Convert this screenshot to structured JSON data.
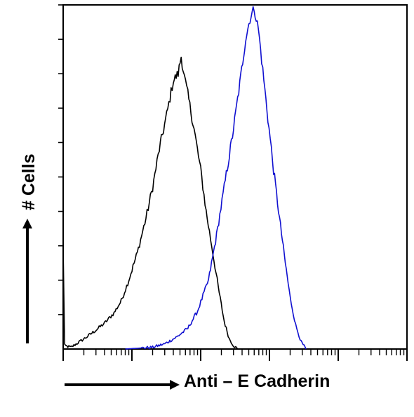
{
  "chart_data": {
    "type": "line",
    "title": "",
    "xlabel": "Anti – E Cadherin",
    "ylabel": "# Cells",
    "x_scale": "log",
    "xlim": [
      1,
      100000
    ],
    "ylim": [
      0,
      100
    ],
    "grid": false,
    "legend": "none",
    "series": [
      {
        "color": "#000000",
        "points": [
          [
            1.0,
            0
          ],
          [
            1.0,
            30.0
          ],
          [
            1.05,
            1.0
          ],
          [
            1.3,
            0.5
          ],
          [
            1.7,
            2.0
          ],
          [
            2.2,
            3.5
          ],
          [
            3.0,
            5.5
          ],
          [
            4.0,
            7.5
          ],
          [
            5.5,
            10.5
          ],
          [
            7.0,
            14.0
          ],
          [
            9.0,
            20.0
          ],
          [
            12.0,
            28.0
          ],
          [
            16.0,
            38.0
          ],
          [
            20.0,
            47.0
          ],
          [
            25.0,
            58.0
          ],
          [
            32.0,
            68.0
          ],
          [
            40.0,
            78.0
          ],
          [
            47.0,
            80.0
          ],
          [
            52.0,
            85.0
          ],
          [
            58.0,
            79.0
          ],
          [
            65.0,
            74.0
          ],
          [
            80.0,
            64.0
          ],
          [
            100.0,
            52.0
          ],
          [
            120.0,
            40.0
          ],
          [
            150.0,
            28.0
          ],
          [
            180.0,
            18.0
          ],
          [
            220.0,
            8.0
          ],
          [
            260.0,
            3.0
          ],
          [
            300.0,
            1.0
          ],
          [
            350.0,
            0
          ]
        ]
      },
      {
        "color": "#1010d0",
        "points": [
          [
            8.0,
            0
          ],
          [
            20.0,
            0.5
          ],
          [
            30.0,
            1.5
          ],
          [
            45.0,
            3.5
          ],
          [
            65.0,
            6.0
          ],
          [
            90.0,
            11.0
          ],
          [
            130.0,
            20.0
          ],
          [
            170.0,
            33.0
          ],
          [
            220.0,
            47.0
          ],
          [
            290.0,
            62.0
          ],
          [
            370.0,
            77.0
          ],
          [
            450.0,
            90.0
          ],
          [
            520.0,
            96.0
          ],
          [
            600.0,
            99.0
          ],
          [
            690.0,
            93.0
          ],
          [
            800.0,
            81.0
          ],
          [
            950.0,
            67.0
          ],
          [
            1150.0,
            52.0
          ],
          [
            1400.0,
            38.0
          ],
          [
            1700.0,
            25.0
          ],
          [
            2000.0,
            15.0
          ],
          [
            2400.0,
            7.0
          ],
          [
            2900.0,
            2.0
          ],
          [
            3400.0,
            0
          ]
        ]
      }
    ]
  }
}
